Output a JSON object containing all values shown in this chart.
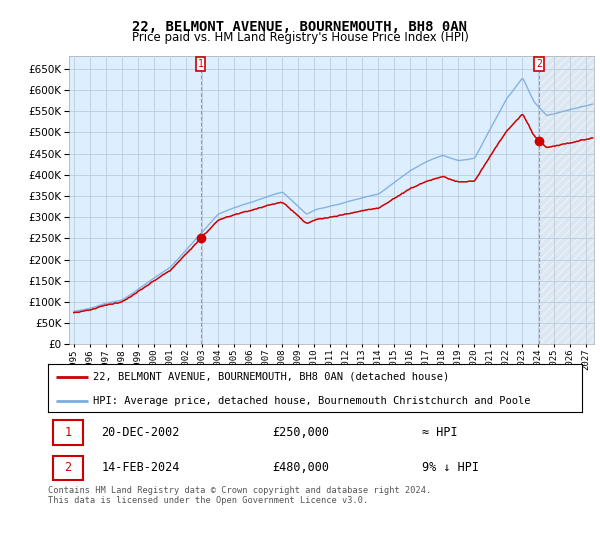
{
  "title": "22, BELMONT AVENUE, BOURNEMOUTH, BH8 0AN",
  "subtitle": "Price paid vs. HM Land Registry's House Price Index (HPI)",
  "legend_line1": "22, BELMONT AVENUE, BOURNEMOUTH, BH8 0AN (detached house)",
  "legend_line2": "HPI: Average price, detached house, Bournemouth Christchurch and Poole",
  "sale1_date": "20-DEC-2002",
  "sale1_price": "£250,000",
  "sale1_hpi": "≈ HPI",
  "sale2_date": "14-FEB-2024",
  "sale2_price": "£480,000",
  "sale2_hpi": "9% ↓ HPI",
  "footer": "Contains HM Land Registry data © Crown copyright and database right 2024.\nThis data is licensed under the Open Government Licence v3.0.",
  "hpi_color": "#7aadde",
  "price_color": "#cc0000",
  "sale_marker_color": "#cc0000",
  "vline_color": "#e08080",
  "background_color": "#ffffff",
  "chart_bg_color": "#ddeeff",
  "grid_color": "#bbccdd",
  "ylim": [
    0,
    680000
  ],
  "yticks": [
    0,
    50000,
    100000,
    150000,
    200000,
    250000,
    300000,
    350000,
    400000,
    450000,
    500000,
    550000,
    600000,
    650000
  ],
  "xlim_start": 1994.7,
  "xlim_end": 2027.5,
  "hatch_start": 2024.17,
  "sale1_time": 2002.917,
  "sale2_time": 2024.083,
  "price_sale1": 250000,
  "price_sale2": 480000
}
